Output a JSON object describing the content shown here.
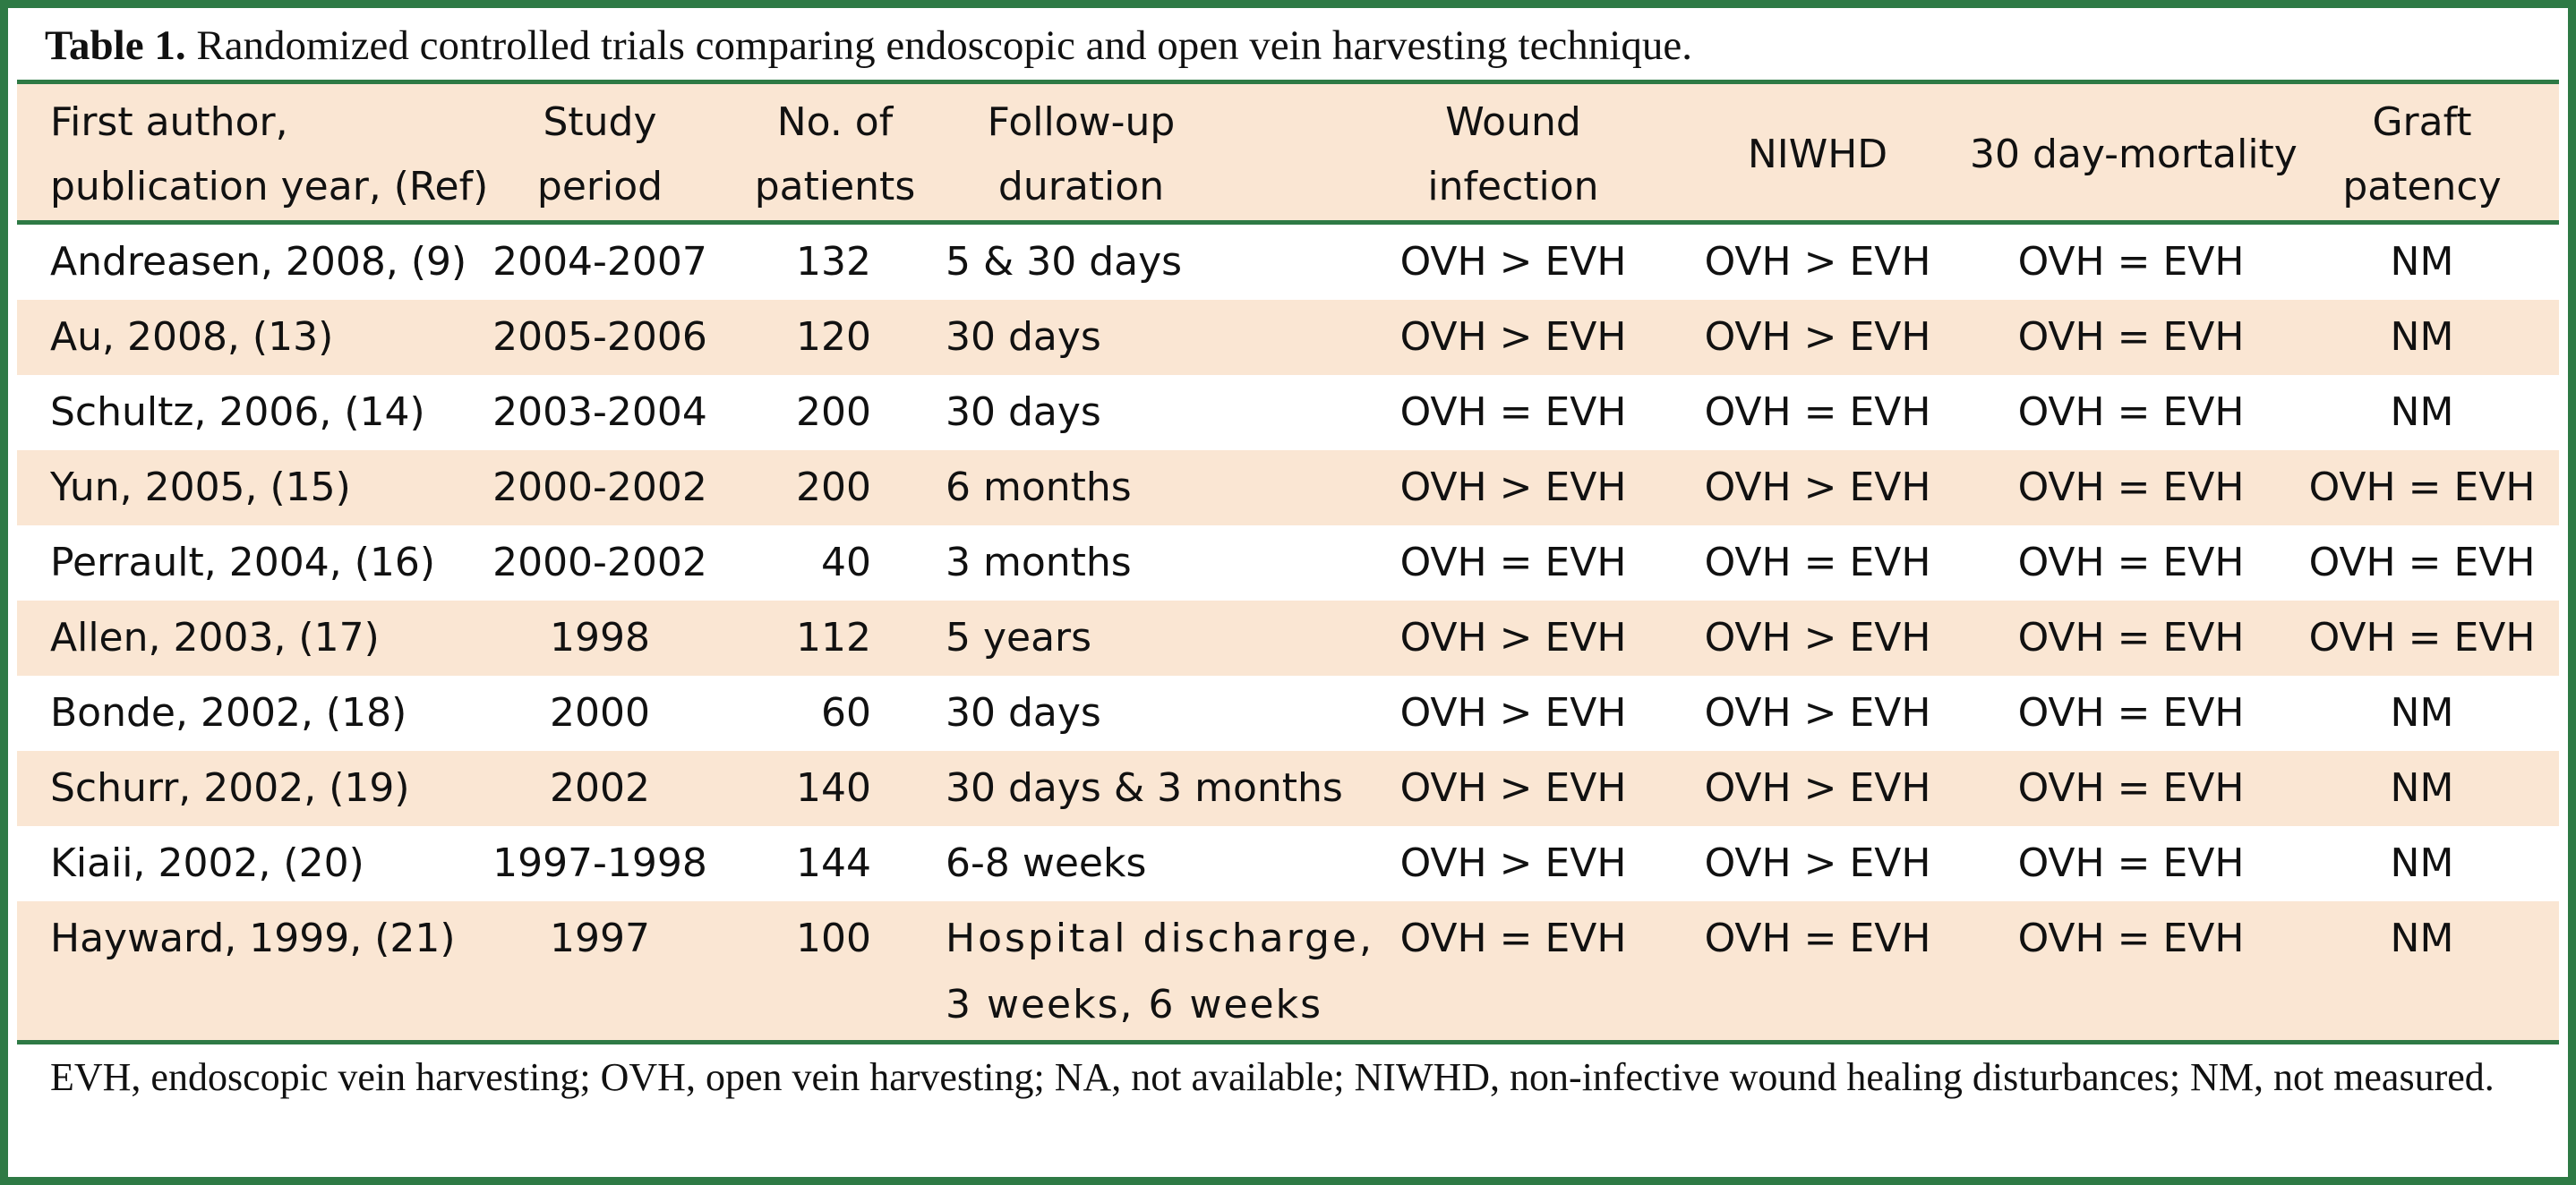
{
  "caption": {
    "label": "Table 1.",
    "text": "Randomized controlled trials comparing endoscopic and open vein harvesting technique."
  },
  "columns": [
    {
      "line1": "First author,",
      "line2": "publication year, (Ref)"
    },
    {
      "line1": "Study",
      "line2": "period"
    },
    {
      "line1": "No. of",
      "line2": "patients"
    },
    {
      "line1": "Follow-up",
      "line2": "duration"
    },
    {
      "line1": "Wound",
      "line2": "infection"
    },
    {
      "line1": "NIWHD",
      "line2": ""
    },
    {
      "line1": "30 day-mortality",
      "line2": ""
    },
    {
      "line1": "Graft",
      "line2": "patency"
    }
  ],
  "rows": [
    {
      "author": "Andreasen, 2008, (9)",
      "period": "2004-2007",
      "patients": "132",
      "followup": "5 & 30 days",
      "followup2": "",
      "wound": "OVH > EVH",
      "niwhd": "OVH > EVH",
      "mortality": "OVH = EVH",
      "patency": "NM"
    },
    {
      "author": "Au, 2008, (13)",
      "period": "2005-2006",
      "patients": "120",
      "followup": "30 days",
      "followup2": "",
      "wound": "OVH > EVH",
      "niwhd": "OVH > EVH",
      "mortality": "OVH = EVH",
      "patency": "NM"
    },
    {
      "author": "Schultz, 2006, (14)",
      "period": "2003-2004",
      "patients": "200",
      "followup": "30 days",
      "followup2": "",
      "wound": "OVH = EVH",
      "niwhd": "OVH = EVH",
      "mortality": "OVH = EVH",
      "patency": "NM"
    },
    {
      "author": "Yun, 2005, (15)",
      "period": "2000-2002",
      "patients": "200",
      "followup": "6 months",
      "followup2": "",
      "wound": "OVH > EVH",
      "niwhd": "OVH > EVH",
      "mortality": "OVH = EVH",
      "patency": "OVH = EVH"
    },
    {
      "author": "Perrault, 2004, (16)",
      "period": "2000-2002",
      "patients": "40",
      "followup": "3 months",
      "followup2": "",
      "wound": "OVH = EVH",
      "niwhd": "OVH = EVH",
      "mortality": "OVH = EVH",
      "patency": "OVH = EVH"
    },
    {
      "author": "Allen, 2003, (17)",
      "period": "1998",
      "patients": "112",
      "followup": "5 years",
      "followup2": "",
      "wound": "OVH > EVH",
      "niwhd": "OVH > EVH",
      "mortality": "OVH = EVH",
      "patency": "OVH = EVH"
    },
    {
      "author": "Bonde, 2002, (18)",
      "period": "2000",
      "patients": "60",
      "followup": "30 days",
      "followup2": "",
      "wound": "OVH > EVH",
      "niwhd": "OVH > EVH",
      "mortality": "OVH = EVH",
      "patency": "NM"
    },
    {
      "author": "Schurr, 2002, (19)",
      "period": "2002",
      "patients": "140",
      "followup": "30 days & 3 months",
      "followup2": "",
      "wound": "OVH > EVH",
      "niwhd": "OVH > EVH",
      "mortality": "OVH = EVH",
      "patency": "NM"
    },
    {
      "author": "Kiaii, 2002, (20)",
      "period": "1997-1998",
      "patients": "144",
      "followup": "6-8 weeks",
      "followup2": "",
      "wound": "OVH > EVH",
      "niwhd": "OVH > EVH",
      "mortality": "OVH = EVH",
      "patency": "NM"
    },
    {
      "author": "Hayward, 1999, (21)",
      "period": "1997",
      "patients": "100",
      "followup": "Hospital discharge,",
      "followup2": "3 weeks, 6 weeks",
      "wound": "OVH = EVH",
      "niwhd": "OVH = EVH",
      "mortality": "OVH = EVH",
      "patency": "NM"
    }
  ],
  "footnote": "EVH, endoscopic vein harvesting; OVH, open vein harvesting; NA, not available; NIWHD, non-infective wound healing disturbances; NM, not measured."
}
